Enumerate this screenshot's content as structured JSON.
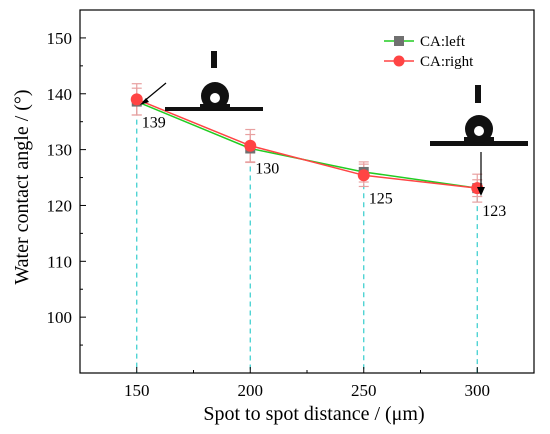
{
  "chart_data": {
    "type": "line",
    "title": "",
    "xlabel": "Spot to spot distance  / (μm)",
    "ylabel": "Water contact angle / (°)",
    "x": [
      150,
      200,
      250,
      300
    ],
    "xticks": [
      150,
      200,
      250,
      300
    ],
    "xlim": [
      125,
      325
    ],
    "ylim": [
      90,
      155
    ],
    "yticks": [
      100,
      110,
      120,
      130,
      140,
      150
    ],
    "grid": false,
    "legend_position": "top-right",
    "series": [
      {
        "name": "CA:left",
        "values": [
          138.6,
          130.2,
          126.0,
          123.1
        ],
        "errors": [
          2.4,
          2.5,
          1.8,
          2.5
        ],
        "line_color": "#22cc22",
        "marker": "square",
        "marker_color": "#707070"
      },
      {
        "name": "CA:right",
        "values": [
          139.0,
          130.7,
          125.4,
          123.1
        ],
        "errors": [
          2.8,
          2.9,
          2.0,
          1.5
        ],
        "line_color": "#ff4444",
        "marker": "circle",
        "marker_color": "#ff4444"
      }
    ],
    "data_labels": [
      {
        "x": 150,
        "text": "139"
      },
      {
        "x": 200,
        "text": "130"
      },
      {
        "x": 250,
        "text": "125"
      },
      {
        "x": 300,
        "text": "123"
      }
    ],
    "guide_line_color": "#33cccc",
    "error_bar_color": "#e8a0a0"
  }
}
